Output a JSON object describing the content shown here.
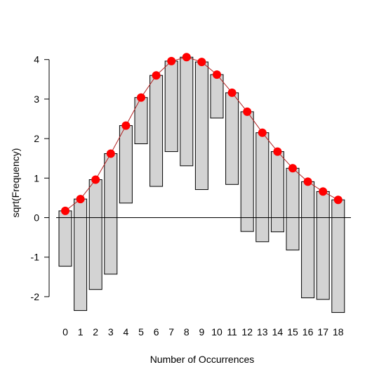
{
  "chart_data": {
    "type": "bar",
    "subtype": "hanging-rootogram",
    "title": "",
    "xlabel": "Number of Occurrences",
    "ylabel": "sqrt(Frequency)",
    "categories": [
      "0",
      "1",
      "2",
      "3",
      "4",
      "5",
      "6",
      "7",
      "8",
      "9",
      "10",
      "11",
      "12",
      "13",
      "14",
      "15",
      "16",
      "17",
      "18"
    ],
    "x": [
      0,
      1,
      2,
      3,
      4,
      5,
      6,
      7,
      8,
      9,
      10,
      11,
      12,
      13,
      14,
      15,
      16,
      17,
      18
    ],
    "ylim": [
      -2.6,
      4.4
    ],
    "yticks": [
      -2,
      -1,
      0,
      1,
      2,
      3,
      4
    ],
    "baseline": 0,
    "series": [
      {
        "role": "bars",
        "top": [
          0.17,
          0.47,
          0.96,
          1.62,
          2.33,
          3.04,
          3.6,
          3.96,
          4.06,
          3.94,
          3.62,
          3.16,
          2.68,
          2.15,
          1.67,
          1.25,
          0.91,
          0.66,
          0.45
        ],
        "bottom": [
          -1.23,
          -2.35,
          -1.82,
          -1.43,
          0.37,
          1.87,
          0.79,
          1.67,
          1.31,
          0.71,
          2.52,
          0.84,
          -0.35,
          -0.61,
          -0.36,
          -0.82,
          -2.03,
          -2.07,
          -2.4
        ],
        "color": "#d3d3d3"
      },
      {
        "role": "fitted",
        "values": [
          0.17,
          0.47,
          0.96,
          1.62,
          2.33,
          3.04,
          3.6,
          3.96,
          4.06,
          3.94,
          3.62,
          3.16,
          2.68,
          2.15,
          1.67,
          1.25,
          0.91,
          0.66,
          0.45
        ],
        "color": "#ff0000"
      }
    ],
    "grid": false,
    "legend": "none"
  }
}
